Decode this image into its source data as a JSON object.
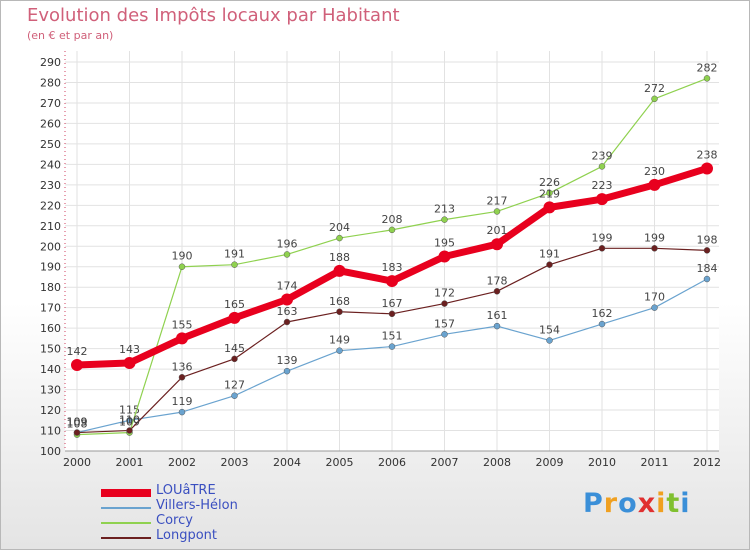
{
  "header": {
    "title": "Evolution des Impôts locaux par Habitant",
    "subtitle": "(en € et par an)"
  },
  "logo": {
    "letters": [
      "P",
      "r",
      "o",
      "x",
      "i",
      "t",
      "i"
    ],
    "colors": [
      "#3a8fd8",
      "#f0a020",
      "#3a8fd8",
      "#e03030",
      "#f0a020",
      "#80c030",
      "#3a8fd8"
    ]
  },
  "chart_data": {
    "type": "line",
    "x": [
      "2000",
      "2001",
      "2002",
      "2003",
      "2004",
      "2005",
      "2006",
      "2007",
      "2008",
      "2009",
      "2010",
      "2011",
      "2012"
    ],
    "ylim": [
      100,
      290
    ],
    "yticks": [
      100,
      110,
      120,
      130,
      140,
      150,
      160,
      170,
      180,
      190,
      200,
      210,
      220,
      230,
      240,
      250,
      260,
      270,
      280,
      290
    ],
    "grid": true,
    "legend_position": "bottom-left",
    "series": [
      {
        "name": "Villers-Hélon",
        "color": "#6aa3cf",
        "weight": "thin",
        "values": [
          109,
          115,
          119,
          127,
          139,
          149,
          151,
          157,
          161,
          154,
          162,
          170,
          184
        ],
        "labels": [
          "109",
          "115",
          "119",
          "127",
          "139",
          "149",
          "151",
          "157",
          "161",
          "154",
          "162",
          "170",
          "184"
        ]
      },
      {
        "name": "Corcy",
        "color": "#8fd14f",
        "weight": "thin",
        "values": [
          108,
          109,
          190,
          191,
          196,
          204,
          208,
          213,
          217,
          226,
          239,
          272,
          282
        ],
        "labels": [
          "108",
          "109",
          "190",
          "191",
          "196",
          "204",
          "208",
          "213",
          "217",
          "226",
          "239",
          "272",
          "282"
        ]
      },
      {
        "name": "Longpont",
        "color": "#6b2020",
        "weight": "thin",
        "values": [
          109,
          110,
          136,
          145,
          163,
          168,
          167,
          172,
          178,
          191,
          199,
          199,
          198
        ],
        "labels": [
          "109",
          "110",
          "136",
          "145",
          "163",
          "168",
          "167",
          "172",
          "178",
          "191",
          "199",
          "199",
          "198"
        ]
      },
      {
        "name": "LOUâTRE",
        "color": "#e8001e",
        "weight": "thick",
        "values": [
          142,
          143,
          155,
          165,
          174,
          188,
          183,
          195,
          201,
          219,
          223,
          230,
          238
        ],
        "labels": [
          "142",
          "143",
          "155",
          "165",
          "174",
          "188",
          "183",
          "195",
          "201",
          "219",
          "223",
          "230",
          "238"
        ]
      }
    ],
    "legend_order": [
      "LOUâTRE",
      "Villers-Hélon",
      "Corcy",
      "Longpont"
    ]
  }
}
